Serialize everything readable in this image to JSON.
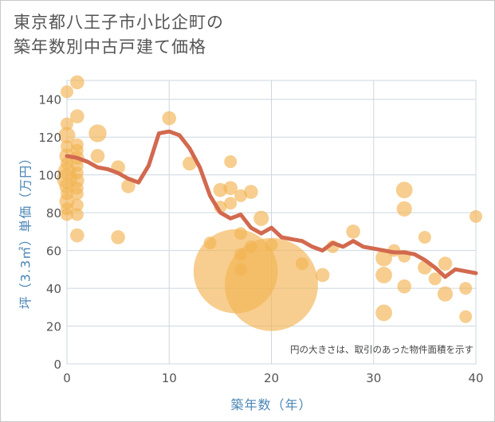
{
  "title_lines": [
    "東京都八王子市小比企町の",
    "築年数別中古戸建て価格"
  ],
  "colors": {
    "bubble": "#f2b453",
    "line": "#d2694f",
    "grid": "#cdd7e1",
    "axis_label": "#4a86b5",
    "tick": "#555555"
  },
  "chart_data": {
    "type": "scatter",
    "xlabel": "築年数（年）",
    "ylabel": "坪（3.3㎡）単価（万円）",
    "annotation": "円の大きさは、取引のあった物件面積を示す",
    "xlim": [
      0,
      40
    ],
    "ylim": [
      0,
      150
    ],
    "xticks": [
      0,
      10,
      20,
      30,
      40
    ],
    "yticks": [
      0,
      20,
      40,
      60,
      80,
      100,
      120,
      140
    ],
    "grid": true,
    "points": [
      {
        "x": 0,
        "y": 144,
        "size": 1
      },
      {
        "x": 0,
        "y": 127,
        "size": 1
      },
      {
        "x": 0,
        "y": 121,
        "size": 1.3
      },
      {
        "x": 0,
        "y": 115,
        "size": 1
      },
      {
        "x": 0,
        "y": 110,
        "size": 1.2
      },
      {
        "x": 0,
        "y": 106,
        "size": 1
      },
      {
        "x": 0,
        "y": 102,
        "size": 1.4
      },
      {
        "x": 0,
        "y": 98,
        "size": 1.6
      },
      {
        "x": 0,
        "y": 94,
        "size": 1.2
      },
      {
        "x": 0,
        "y": 90,
        "size": 1
      },
      {
        "x": 0,
        "y": 86,
        "size": 1.2
      },
      {
        "x": 0,
        "y": 82,
        "size": 1
      },
      {
        "x": 0,
        "y": 79,
        "size": 1
      },
      {
        "x": 1,
        "y": 149,
        "size": 1.1
      },
      {
        "x": 1,
        "y": 131,
        "size": 1.1
      },
      {
        "x": 1,
        "y": 116,
        "size": 1
      },
      {
        "x": 1,
        "y": 113,
        "size": 1
      },
      {
        "x": 1,
        "y": 109,
        "size": 1.1
      },
      {
        "x": 1,
        "y": 105,
        "size": 1
      },
      {
        "x": 1,
        "y": 101,
        "size": 1
      },
      {
        "x": 1,
        "y": 97,
        "size": 1.1
      },
      {
        "x": 1,
        "y": 93,
        "size": 1
      },
      {
        "x": 1,
        "y": 90,
        "size": 1
      },
      {
        "x": 1,
        "y": 84,
        "size": 1
      },
      {
        "x": 1,
        "y": 79,
        "size": 1
      },
      {
        "x": 1,
        "y": 68,
        "size": 1.1
      },
      {
        "x": 3,
        "y": 122,
        "size": 1.4
      },
      {
        "x": 3,
        "y": 110,
        "size": 1.1
      },
      {
        "x": 5,
        "y": 104,
        "size": 1.1
      },
      {
        "x": 5,
        "y": 67,
        "size": 1.1
      },
      {
        "x": 6,
        "y": 94,
        "size": 1.1
      },
      {
        "x": 10,
        "y": 130,
        "size": 1.1
      },
      {
        "x": 12,
        "y": 106,
        "size": 1.1
      },
      {
        "x": 14,
        "y": 64,
        "size": 1
      },
      {
        "x": 15,
        "y": 92,
        "size": 1.1
      },
      {
        "x": 15,
        "y": 83,
        "size": 1
      },
      {
        "x": 16,
        "y": 107,
        "size": 1
      },
      {
        "x": 16,
        "y": 93,
        "size": 1.1
      },
      {
        "x": 16,
        "y": 85,
        "size": 1
      },
      {
        "x": 16.5,
        "y": 49,
        "size": 6.6
      },
      {
        "x": 17,
        "y": 89,
        "size": 1
      },
      {
        "x": 17,
        "y": 69,
        "size": 1
      },
      {
        "x": 17,
        "y": 58,
        "size": 1
      },
      {
        "x": 17,
        "y": 50,
        "size": 1
      },
      {
        "x": 18,
        "y": 91,
        "size": 1.1
      },
      {
        "x": 18,
        "y": 62,
        "size": 1
      },
      {
        "x": 19,
        "y": 77,
        "size": 1.2
      },
      {
        "x": 20,
        "y": 42,
        "size": 7.3
      },
      {
        "x": 20,
        "y": 63,
        "size": 1
      },
      {
        "x": 23,
        "y": 53,
        "size": 1
      },
      {
        "x": 25,
        "y": 47,
        "size": 1.1
      },
      {
        "x": 26,
        "y": 62,
        "size": 1
      },
      {
        "x": 28,
        "y": 70,
        "size": 1.1
      },
      {
        "x": 31,
        "y": 56,
        "size": 1.3
      },
      {
        "x": 31,
        "y": 47,
        "size": 1.3
      },
      {
        "x": 31,
        "y": 27,
        "size": 1.3
      },
      {
        "x": 32,
        "y": 60,
        "size": 1
      },
      {
        "x": 33,
        "y": 92,
        "size": 1.3
      },
      {
        "x": 33,
        "y": 82,
        "size": 1.2
      },
      {
        "x": 33,
        "y": 57,
        "size": 1
      },
      {
        "x": 33,
        "y": 41,
        "size": 1.1
      },
      {
        "x": 35,
        "y": 67,
        "size": 1
      },
      {
        "x": 35,
        "y": 51,
        "size": 1.1
      },
      {
        "x": 36,
        "y": 45,
        "size": 1
      },
      {
        "x": 37,
        "y": 53,
        "size": 1.1
      },
      {
        "x": 37,
        "y": 37,
        "size": 1.2
      },
      {
        "x": 39,
        "y": 40,
        "size": 1
      },
      {
        "x": 39,
        "y": 25,
        "size": 1
      },
      {
        "x": 40,
        "y": 78,
        "size": 1
      }
    ],
    "average_line": {
      "x": [
        0,
        1,
        2,
        3,
        4,
        5,
        6,
        7,
        8,
        9,
        10,
        11,
        12,
        13,
        14,
        15,
        16,
        17,
        18,
        19,
        20,
        21,
        22,
        23,
        24,
        25,
        26,
        27,
        28,
        29,
        30,
        31,
        32,
        33,
        34,
        35,
        36,
        37,
        38,
        39,
        40
      ],
      "y": [
        110,
        109,
        107,
        104,
        103,
        101,
        98,
        96,
        105,
        122,
        123,
        121,
        114,
        104,
        89,
        80,
        77,
        79,
        72,
        69,
        72,
        67,
        66,
        65,
        62,
        60,
        64,
        62,
        65,
        62,
        61,
        60,
        59,
        59,
        58,
        55,
        51,
        46,
        50,
        49,
        48
      ]
    }
  }
}
